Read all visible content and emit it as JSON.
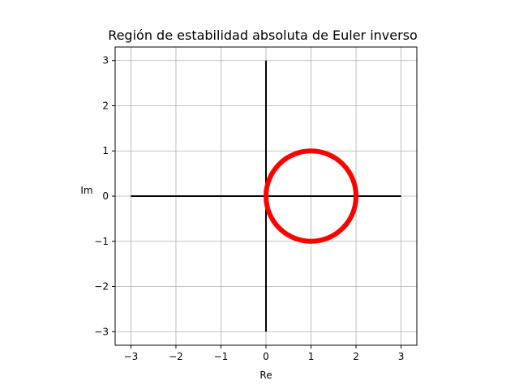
{
  "chart_data": {
    "type": "line",
    "title": "Región de estabilidad absoluta de Euler inverso",
    "xlabel": "Re",
    "ylabel": "Im",
    "xlim": [
      -3.35,
      3.35
    ],
    "ylim": [
      -3.3,
      3.3
    ],
    "xticks": [
      -3,
      -2,
      -1,
      0,
      1,
      2,
      3
    ],
    "yticks": [
      -3,
      -2,
      -1,
      0,
      1,
      2,
      3
    ],
    "xtick_labels": [
      "−3",
      "−2",
      "−1",
      "0",
      "1",
      "2",
      "3"
    ],
    "ytick_labels": [
      "−3",
      "−2",
      "−1",
      "0",
      "1",
      "2",
      "3"
    ],
    "grid": true,
    "series": [
      {
        "color": "#000000",
        "x": [
          -3,
          3
        ],
        "y": [
          0,
          0
        ]
      },
      {
        "color": "#000000",
        "x": [
          0,
          0
        ],
        "y": [
          -3,
          3
        ]
      },
      {
        "color": "#ff0000",
        "shape": "circle",
        "center": [
          1,
          0
        ],
        "radius": 1
      }
    ]
  }
}
